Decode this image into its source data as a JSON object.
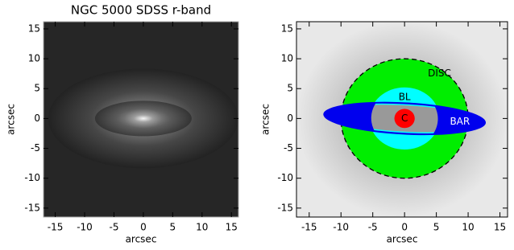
{
  "chart_data": [
    {
      "type": "image",
      "title": "NGC 5000  SDSS r-band",
      "xlabel": "arcsec",
      "ylabel": "arcsec",
      "xlim": [
        -17,
        16.2
      ],
      "ylim": [
        -16.5,
        16.2
      ],
      "xticks": [
        -15,
        -10,
        -5,
        0,
        5,
        10,
        15
      ],
      "yticks": [
        -15,
        -10,
        -5,
        0,
        5,
        10,
        15
      ]
    },
    {
      "type": "diagram",
      "xlabel": "arcsec",
      "ylabel": "arcsec",
      "xlim": [
        -17,
        16.2
      ],
      "ylim": [
        -16.5,
        16.2
      ],
      "xticks": [
        -15,
        -10,
        -5,
        0,
        5,
        10,
        15
      ],
      "yticks": [
        -15,
        -10,
        -5,
        0,
        5,
        10,
        15
      ],
      "components": [
        {
          "name": "DISC",
          "color": "#00ee00",
          "rx": 10,
          "ry": 10
        },
        {
          "name": "BL",
          "color": "#00ffff",
          "rx": 5.5,
          "ry": 5.2
        },
        {
          "name": "BAR",
          "color": "#0000ee",
          "rx": 12.8,
          "ry": 2.7
        },
        {
          "name": "C",
          "color": "#ff0000",
          "rx": 1.6,
          "ry": 1.6
        }
      ]
    }
  ]
}
